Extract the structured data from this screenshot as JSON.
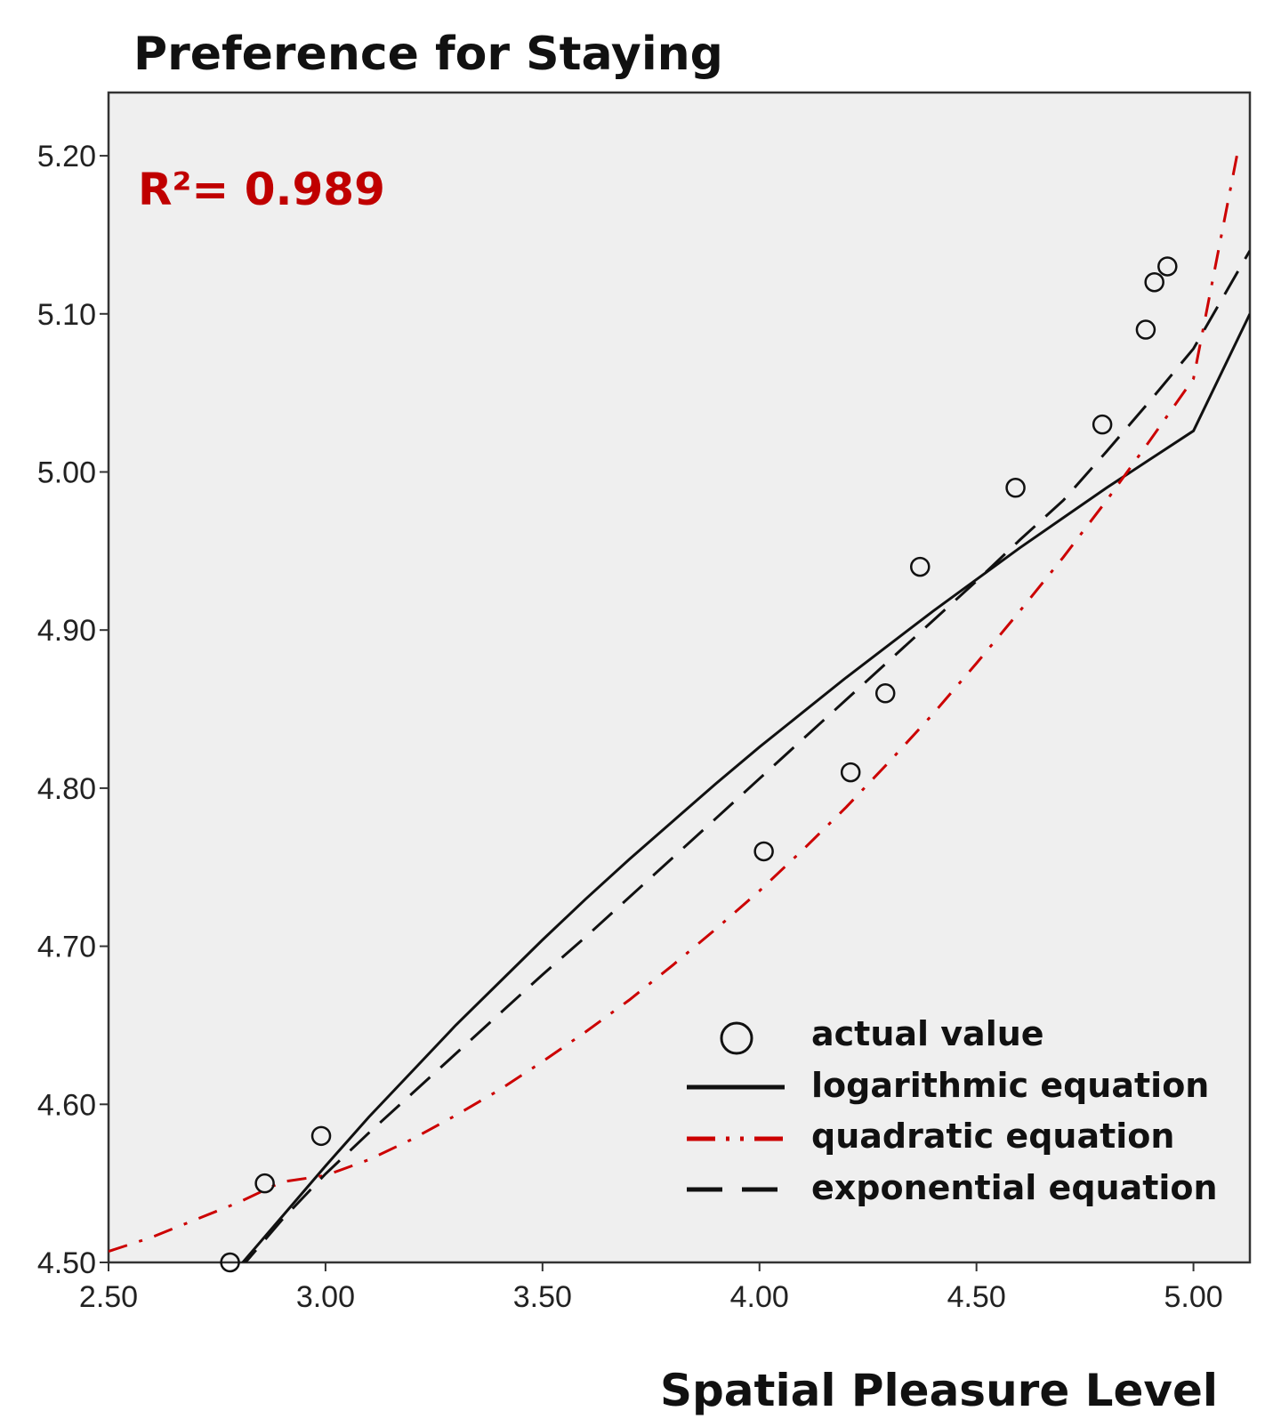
{
  "chart_data": {
    "type": "scatter",
    "title": "Preference for Staying",
    "xlabel": "Spatial Pleasure Level",
    "ylabel": "",
    "xlim": [
      2.5,
      5.13
    ],
    "ylim": [
      4.5,
      5.24
    ],
    "xticks": [
      2.5,
      3.0,
      3.5,
      4.0,
      4.5,
      5.0
    ],
    "xtick_labels": [
      "2.50",
      "3.00",
      "3.50",
      "4.00",
      "4.50",
      "5.00"
    ],
    "yticks": [
      4.5,
      4.6,
      4.7,
      4.8,
      4.9,
      5.0,
      5.1,
      5.2
    ],
    "ytick_labels": [
      "4.50",
      "4.60",
      "4.70",
      "4.80",
      "4.90",
      "5.00",
      "5.10",
      "5.20"
    ],
    "annotation": {
      "text": "R²= 0.989",
      "color": "#c00000"
    },
    "points": [
      {
        "x": 2.78,
        "y": 4.5
      },
      {
        "x": 2.86,
        "y": 4.55
      },
      {
        "x": 2.99,
        "y": 4.58
      },
      {
        "x": 4.01,
        "y": 4.76
      },
      {
        "x": 4.21,
        "y": 4.81
      },
      {
        "x": 4.29,
        "y": 4.86
      },
      {
        "x": 4.37,
        "y": 4.94
      },
      {
        "x": 4.59,
        "y": 4.99
      },
      {
        "x": 4.79,
        "y": 5.03
      },
      {
        "x": 4.89,
        "y": 5.09
      },
      {
        "x": 4.91,
        "y": 5.12
      },
      {
        "x": 4.94,
        "y": 5.13
      }
    ],
    "series": [
      {
        "name": "logarithmic equation",
        "style": "solid",
        "color": "#111111",
        "x": [
          2.8,
          2.9,
          3.0,
          3.1,
          3.2,
          3.3,
          3.4,
          3.5,
          3.6,
          3.7,
          3.8,
          3.9,
          4.0,
          4.1,
          4.2,
          4.3,
          4.4,
          4.5,
          4.6,
          4.7,
          4.8,
          4.9,
          5.0,
          5.13
        ],
        "values": [
          4.497,
          4.529,
          4.561,
          4.592,
          4.621,
          4.65,
          4.677,
          4.704,
          4.73,
          4.755,
          4.779,
          4.803,
          4.826,
          4.848,
          4.87,
          4.891,
          4.912,
          4.932,
          4.952,
          4.971,
          4.99,
          5.008,
          5.026,
          5.1
        ]
      },
      {
        "name": "quadratic equation",
        "style": "dash-dot-dot",
        "color": "#cc0000",
        "x": [
          2.5,
          2.6,
          2.7,
          2.8,
          2.9,
          3.0,
          3.1,
          3.2,
          3.3,
          3.4,
          3.5,
          3.6,
          3.7,
          3.8,
          3.9,
          4.0,
          4.1,
          4.2,
          4.3,
          4.4,
          4.5,
          4.6,
          4.7,
          4.8,
          4.9,
          5.0,
          5.1
        ],
        "values": [
          4.507,
          4.516,
          4.527,
          4.538,
          4.551,
          4.555,
          4.565,
          4.578,
          4.593,
          4.609,
          4.627,
          4.646,
          4.666,
          4.688,
          4.711,
          4.735,
          4.761,
          4.788,
          4.817,
          4.847,
          4.879,
          4.912,
          4.946,
          4.982,
          5.02,
          5.059,
          5.2
        ]
      },
      {
        "name": "exponential equation",
        "style": "dashed",
        "color": "#111111",
        "x": [
          2.8,
          2.9,
          3.0,
          3.1,
          3.2,
          3.3,
          3.4,
          3.5,
          3.6,
          3.7,
          3.8,
          3.9,
          4.0,
          4.1,
          4.2,
          4.3,
          4.4,
          4.5,
          4.6,
          4.7,
          4.8,
          4.9,
          5.0,
          5.13
        ],
        "values": [
          4.495,
          4.527,
          4.556,
          4.582,
          4.607,
          4.632,
          4.657,
          4.682,
          4.706,
          4.731,
          4.756,
          4.781,
          4.806,
          4.831,
          4.856,
          4.881,
          4.906,
          4.931,
          4.957,
          4.982,
          5.013,
          5.045,
          5.078,
          5.14
        ]
      }
    ],
    "legend": {
      "position": "bottom-right",
      "entries": [
        {
          "label": "actual value",
          "marker": "circle"
        },
        {
          "label": "logarithmic equation",
          "marker": "solid"
        },
        {
          "label": "quadratic equation",
          "marker": "dash-dot-dot"
        },
        {
          "label": "exponential equation",
          "marker": "dashed"
        }
      ]
    }
  }
}
